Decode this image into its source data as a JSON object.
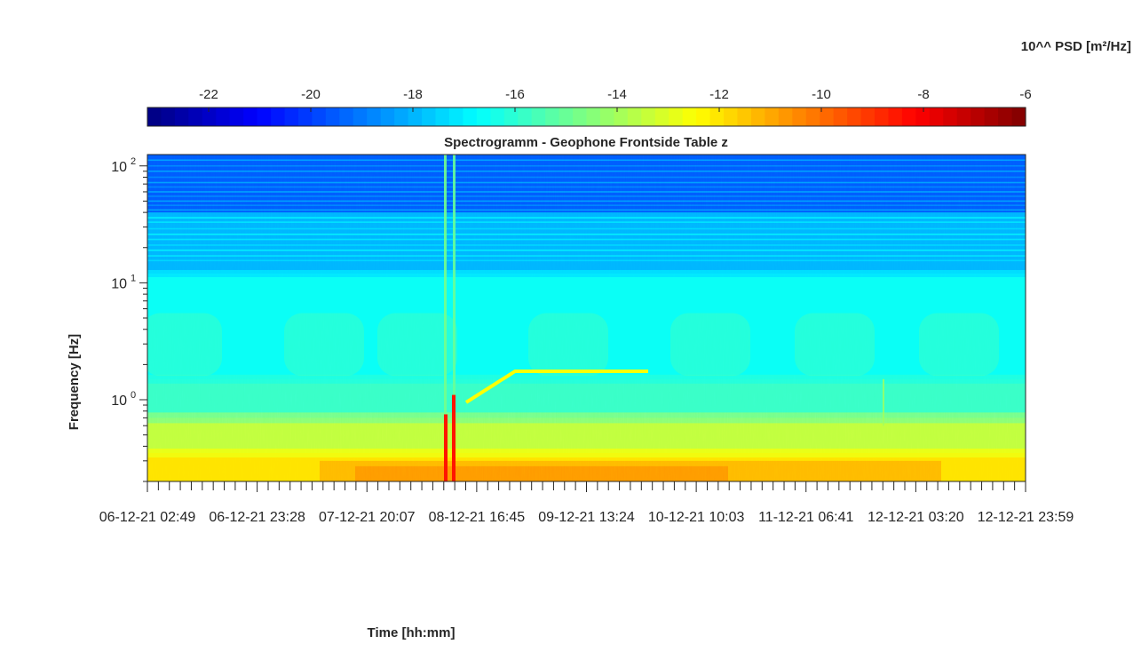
{
  "chart_data": {
    "type": "heatmap",
    "title": "Spectrogramm - Geophone Frontside Table z",
    "xlabel": "Time [hh:mm]",
    "ylabel": "Frequency [Hz]",
    "x_tick_labels": [
      "06-12-21 02:49",
      "06-12-21 23:28",
      "07-12-21 20:07",
      "08-12-21 16:45",
      "09-12-21 13:24",
      "10-12-21 10:03",
      "11-12-21 06:41",
      "12-12-21 03:20",
      "12-12-21 23:59"
    ],
    "y_scale": "log",
    "ylim": [
      0.2,
      125
    ],
    "y_tick_values": [
      1,
      10,
      100
    ],
    "y_tick_labels": [
      {
        "base": "10",
        "exp": "0"
      },
      {
        "base": "10",
        "exp": "1"
      },
      {
        "base": "10",
        "exp": "2"
      }
    ],
    "colorbar": {
      "label": "10^^ PSD [m²/Hz]",
      "colormap": "jet",
      "placement": "top",
      "range": [
        -23.2,
        -6
      ],
      "ticks": [
        "-22",
        "-20",
        "-18",
        "-16",
        "-14",
        "-12",
        "-10",
        "-8",
        "-6"
      ]
    },
    "grid": false,
    "features": {
      "background_by_band": [
        {
          "freq_range": [
            40,
            125
          ],
          "log_psd": -19.5
        },
        {
          "freq_range": [
            12,
            40
          ],
          "log_psd": -18.0
        },
        {
          "freq_range": [
            1.5,
            12
          ],
          "log_psd": -16.6
        },
        {
          "freq_range": [
            0.7,
            1.5
          ],
          "log_psd": -15.8
        },
        {
          "freq_range": [
            0.35,
            0.7
          ],
          "log_psd": -13.5
        },
        {
          "freq_range": [
            0.2,
            0.35
          ],
          "log_psd": -12.0
        }
      ],
      "broadband_event": {
        "time": "08-12-21",
        "log_psd": -8.5
      },
      "narrowband_line": {
        "freq_hz": 1.75,
        "log_psd": -12.5
      }
    }
  }
}
